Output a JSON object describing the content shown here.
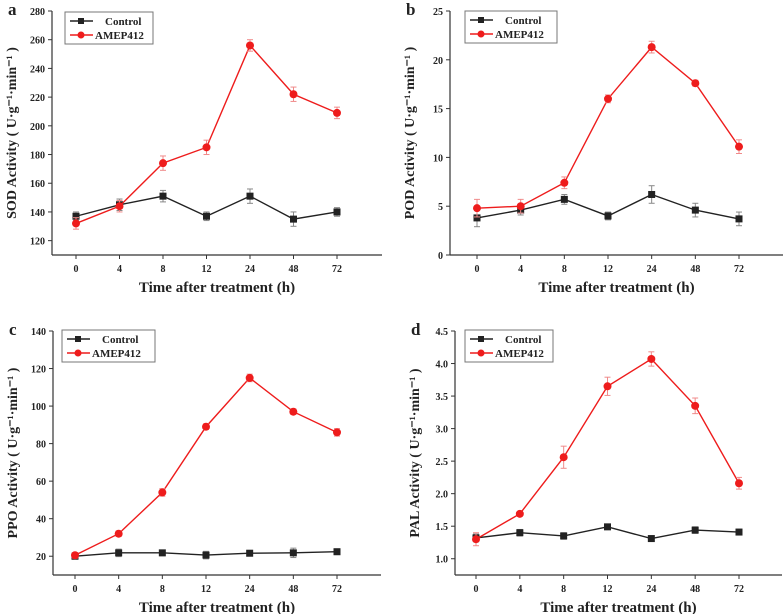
{
  "chart_data": [
    {
      "type": "line",
      "panel_label": "a",
      "xlabel": "Time after treatment (h)",
      "ylabel": "SOD Activity ( U·g⁻¹·min⁻¹ )",
      "categories": [
        "0",
        "4",
        "8",
        "12",
        "24",
        "48",
        "72"
      ],
      "yticks": [
        "120",
        "140",
        "160",
        "180",
        "200",
        "220",
        "240",
        "260",
        "280"
      ],
      "ylim": [
        110,
        280
      ],
      "legend_position": "top-left",
      "series": [
        {
          "name": "Control",
          "color": "#222222",
          "marker": "square",
          "values": [
            137,
            145,
            151,
            137,
            151,
            135,
            140
          ],
          "error": [
            3,
            4,
            4,
            3,
            5,
            5,
            3
          ]
        },
        {
          "name": "AMEP412",
          "color": "#ee1c1c",
          "marker": "circle",
          "values": [
            132,
            144,
            174,
            185,
            256,
            222,
            209
          ],
          "error": [
            4,
            4,
            5,
            5,
            4,
            5,
            4
          ]
        }
      ]
    },
    {
      "type": "line",
      "panel_label": "b",
      "xlabel": "Time after treatment (h)",
      "ylabel": "POD Activity ( U·g⁻¹·min⁻¹ )",
      "categories": [
        "0",
        "4",
        "8",
        "12",
        "24",
        "48",
        "72"
      ],
      "yticks": [
        "0",
        "5",
        "10",
        "15",
        "20",
        "25"
      ],
      "ylim": [
        0,
        25
      ],
      "legend_position": "top-left",
      "series": [
        {
          "name": "Control",
          "color": "#222222",
          "marker": "square",
          "values": [
            3.8,
            4.6,
            5.7,
            4.0,
            6.2,
            4.6,
            3.7
          ],
          "error": [
            0.9,
            0.5,
            0.5,
            0.4,
            0.9,
            0.7,
            0.7
          ]
        },
        {
          "name": "AMEP412",
          "color": "#ee1c1c",
          "marker": "circle",
          "values": [
            4.8,
            5.0,
            7.4,
            16.0,
            21.3,
            17.6,
            11.1
          ],
          "error": [
            0.9,
            0.7,
            0.6,
            0.4,
            0.6,
            0.3,
            0.7
          ]
        }
      ]
    },
    {
      "type": "line",
      "panel_label": "c",
      "xlabel": "Time after treatment (h)",
      "ylabel": "PPO Activity ( U·g⁻¹·min⁻¹ )",
      "categories": [
        "0",
        "4",
        "8",
        "12",
        "24",
        "48",
        "72"
      ],
      "yticks": [
        "20",
        "40",
        "60",
        "80",
        "100",
        "120",
        "140"
      ],
      "ylim": [
        10,
        140
      ],
      "legend_position": "top-left",
      "series": [
        {
          "name": "Control",
          "color": "#222222",
          "marker": "square",
          "values": [
            20,
            21.8,
            21.8,
            20.6,
            21.6,
            21.8,
            22.4
          ],
          "error": [
            1,
            2,
            1.5,
            2,
            1.5,
            2.5,
            1.5
          ]
        },
        {
          "name": "AMEP412",
          "color": "#ee1c1c",
          "marker": "circle",
          "values": [
            20.5,
            32,
            54,
            89,
            115,
            97,
            86
          ],
          "error": [
            1.5,
            1.5,
            2,
            1.5,
            2,
            1.5,
            2
          ]
        }
      ]
    },
    {
      "type": "line",
      "panel_label": "d",
      "xlabel": "Time after treatment (h)",
      "ylabel": "PAL Activity ( U·g⁻¹·min⁻¹ )",
      "categories": [
        "0",
        "4",
        "8",
        "12",
        "24",
        "48",
        "72"
      ],
      "yticks": [
        "1.0",
        "1.5",
        "2.0",
        "2.5",
        "3.0",
        "3.5",
        "4.0",
        "4.5"
      ],
      "ylim": [
        0.75,
        4.5
      ],
      "legend_position": "top-left",
      "series": [
        {
          "name": "Control",
          "color": "#222222",
          "marker": "square",
          "values": [
            1.32,
            1.4,
            1.35,
            1.49,
            1.31,
            1.44,
            1.41
          ],
          "error": [
            0.06,
            0.05,
            0.05,
            0.04,
            0.04,
            0.05,
            0.04
          ]
        },
        {
          "name": "AMEP412",
          "color": "#ee1c1c",
          "marker": "circle",
          "values": [
            1.3,
            1.69,
            2.56,
            3.65,
            4.07,
            3.35,
            2.16
          ],
          "error": [
            0.1,
            0.03,
            0.17,
            0.14,
            0.11,
            0.12,
            0.09
          ]
        }
      ]
    }
  ]
}
